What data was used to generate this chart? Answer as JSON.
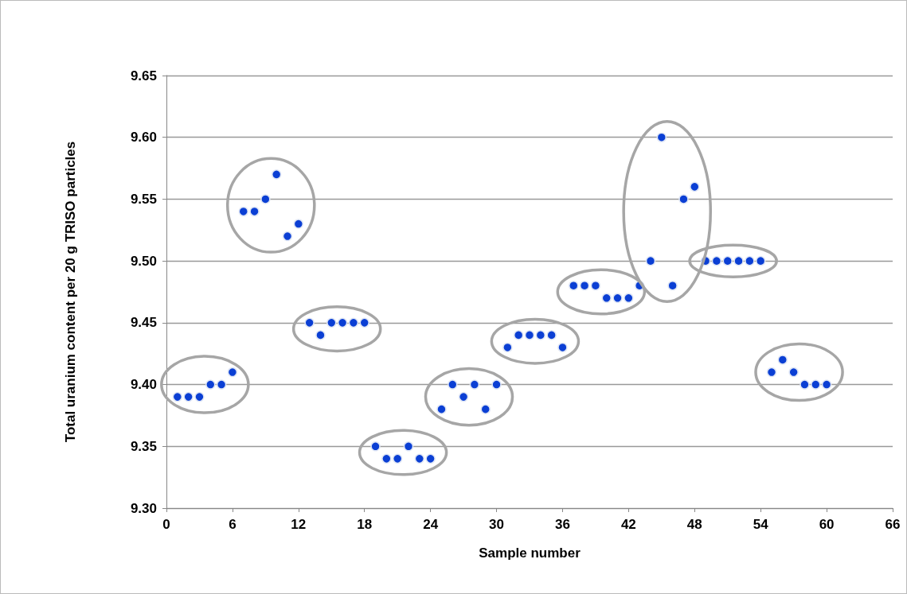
{
  "chart_data": {
    "type": "scatter",
    "xlabel": "Sample number",
    "ylabel": "Total uranium content per 20 g TRISO particles",
    "x": [
      1,
      2,
      3,
      4,
      5,
      6,
      7,
      8,
      9,
      10,
      11,
      12,
      13,
      14,
      15,
      16,
      17,
      18,
      19,
      20,
      21,
      22,
      23,
      24,
      25,
      26,
      27,
      28,
      29,
      30,
      31,
      32,
      33,
      34,
      35,
      36,
      37,
      38,
      39,
      40,
      41,
      42,
      43,
      44,
      45,
      46,
      47,
      48,
      49,
      50,
      51,
      52,
      53,
      54,
      55,
      56,
      57,
      58,
      59,
      60
    ],
    "series": [
      {
        "color": "#0b3fd4",
        "values": [
          9.39,
          9.39,
          9.39,
          9.4,
          9.4,
          9.41,
          9.54,
          9.54,
          9.55,
          9.57,
          9.52,
          9.53,
          9.45,
          9.44,
          9.45,
          9.45,
          9.45,
          9.45,
          9.35,
          9.34,
          9.34,
          9.35,
          9.34,
          9.34,
          9.38,
          9.4,
          9.39,
          9.4,
          9.38,
          9.4,
          9.43,
          9.44,
          9.44,
          9.44,
          9.44,
          9.43,
          9.48,
          9.48,
          9.48,
          9.47,
          9.47,
          9.47,
          9.48,
          9.5,
          9.6,
          9.48,
          9.55,
          9.56,
          9.5,
          9.5,
          9.5,
          9.5,
          9.5,
          9.5,
          9.41,
          9.42,
          9.41,
          9.4,
          9.4,
          9.4
        ]
      }
    ],
    "xlim": [
      0,
      66
    ],
    "xticks": [
      0,
      6,
      12,
      18,
      24,
      30,
      36,
      42,
      48,
      54,
      60,
      66
    ],
    "ylim": [
      9.3,
      9.65
    ],
    "yticks": [
      {
        "value": 9.3,
        "label": "9.30"
      },
      {
        "value": 9.35,
        "label": "9.35"
      },
      {
        "value": 9.4,
        "label": "9.40"
      },
      {
        "value": 9.45,
        "label": "9.45"
      },
      {
        "value": 9.5,
        "label": "9.50"
      },
      {
        "value": 9.55,
        "label": "9.55"
      },
      {
        "value": 9.6,
        "label": "9.60"
      },
      {
        "value": 9.65,
        "label": "9.65"
      }
    ],
    "grid": "y",
    "marker": "circle"
  }
}
